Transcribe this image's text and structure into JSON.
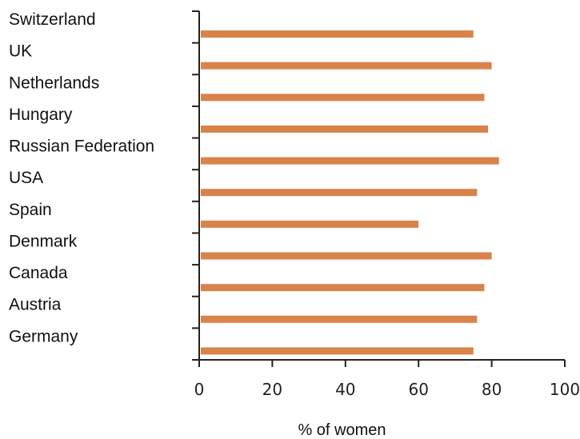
{
  "chart_data": {
    "type": "bar",
    "orientation": "horizontal",
    "categories": [
      "Switzerland",
      "UK",
      "Netherlands",
      "Hungary",
      "Russian Federation",
      "USA",
      "Spain",
      "Denmark",
      "Canada",
      "Austria",
      "Germany"
    ],
    "values": [
      75,
      80,
      78,
      79,
      82,
      76,
      60,
      80,
      78,
      76,
      75
    ],
    "xlabel": "% of women",
    "ylabel": "",
    "xlim": [
      0,
      100
    ],
    "xticks": [
      "0",
      "20",
      "40",
      "60",
      "80",
      "100"
    ],
    "bar_color": "#d9834a",
    "grid": false,
    "legend": "none"
  }
}
